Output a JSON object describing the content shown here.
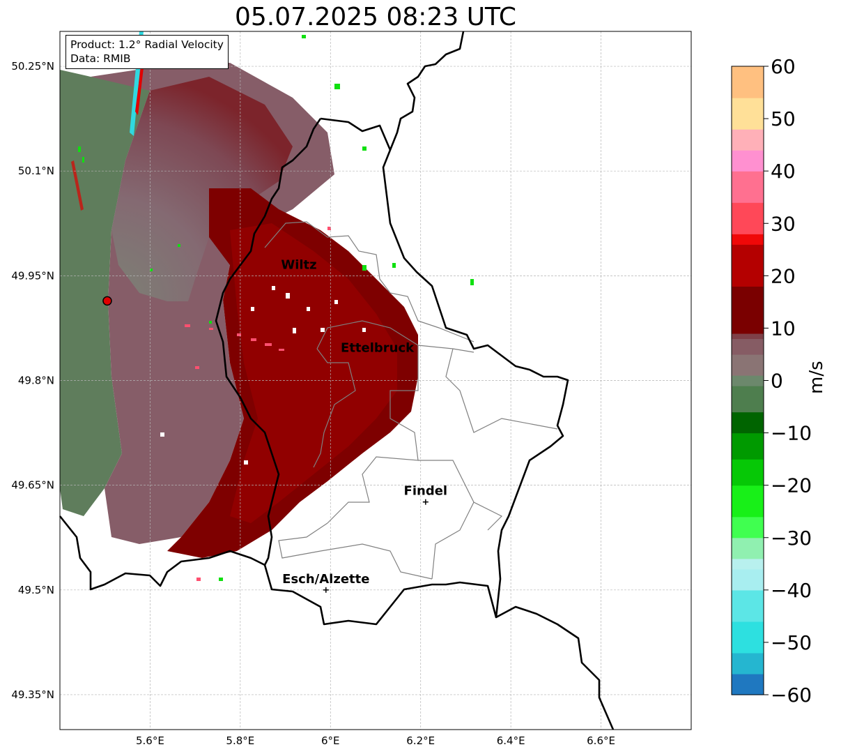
{
  "title": "05.07.2025 08:23 UTC",
  "info": {
    "product": "Product: 1.2° Radial Velocity",
    "data_source": "Data: RMIB"
  },
  "map": {
    "lon_range": [
      5.4,
      6.8
    ],
    "lat_range": [
      49.3,
      50.3
    ],
    "lon_ticks": [
      {
        "value": 5.6,
        "label": "5.6°E"
      },
      {
        "value": 5.8,
        "label": "5.8°E"
      },
      {
        "value": 6.0,
        "label": "6°E"
      },
      {
        "value": 6.2,
        "label": "6.2°E"
      },
      {
        "value": 6.4,
        "label": "6.4°E"
      },
      {
        "value": 6.6,
        "label": "6.6°E"
      }
    ],
    "lat_ticks": [
      {
        "value": 50.25,
        "label": "50.25°N"
      },
      {
        "value": 50.1,
        "label": "50.1°N"
      },
      {
        "value": 49.95,
        "label": "49.95°N"
      },
      {
        "value": 49.8,
        "label": "49.8°N"
      },
      {
        "value": 49.65,
        "label": "49.65°N"
      },
      {
        "value": 49.5,
        "label": "49.5°N"
      },
      {
        "value": 49.35,
        "label": "49.35°N"
      }
    ],
    "radar_site": {
      "lon": 5.505,
      "lat": 49.914,
      "color": "#e00000"
    },
    "places": [
      {
        "name": "Wiltz",
        "lon": 5.93,
        "lat": 49.966,
        "marker": false
      },
      {
        "name": "Ettelbruck",
        "lon": 6.104,
        "lat": 49.847,
        "marker": false
      },
      {
        "name": "Findel",
        "lon": 6.211,
        "lat": 49.626,
        "marker": true
      },
      {
        "name": "Esch/Alzette",
        "lon": 5.99,
        "lat": 49.5,
        "marker": true
      }
    ],
    "border_color": "#000000",
    "canton_color": "#808080",
    "grid": true
  },
  "colorbar": {
    "label": "m/s",
    "range": [
      -60,
      60
    ],
    "ticks": [
      {
        "value": 60,
        "label": "60"
      },
      {
        "value": 50,
        "label": "50"
      },
      {
        "value": 40,
        "label": "40"
      },
      {
        "value": 30,
        "label": "30"
      },
      {
        "value": 20,
        "label": "20"
      },
      {
        "value": 10,
        "label": "10"
      },
      {
        "value": 0,
        "label": "0"
      },
      {
        "value": -10,
        "label": "−10"
      },
      {
        "value": -20,
        "label": "−20"
      },
      {
        "value": -30,
        "label": "−30"
      },
      {
        "value": -40,
        "label": "−40"
      },
      {
        "value": -50,
        "label": "−50"
      },
      {
        "value": -60,
        "label": "−60"
      }
    ],
    "stops": [
      {
        "value": -60,
        "color": "#1f78c0"
      },
      {
        "value": -56,
        "color": "#25b6d0"
      },
      {
        "value": -52,
        "color": "#2de0e0"
      },
      {
        "value": -46,
        "color": "#5ce6e6"
      },
      {
        "value": -40,
        "color": "#a8eef0"
      },
      {
        "value": -36,
        "color": "#b8f0ee"
      },
      {
        "value": -34,
        "color": "#90f0b0"
      },
      {
        "value": -30,
        "color": "#40ff50"
      },
      {
        "value": -26,
        "color": "#18f018"
      },
      {
        "value": -20,
        "color": "#06c806"
      },
      {
        "value": -15,
        "color": "#009a00"
      },
      {
        "value": -10,
        "color": "#006400"
      },
      {
        "value": -6,
        "color": "#4e7e4e"
      },
      {
        "value": -1,
        "color": "#6c886c"
      },
      {
        "value": 1,
        "color": "#8a7474"
      },
      {
        "value": 5,
        "color": "#865c64"
      },
      {
        "value": 8,
        "color": "#7e4048"
      },
      {
        "value": 9,
        "color": "#7a0000"
      },
      {
        "value": 18,
        "color": "#b40000"
      },
      {
        "value": 26,
        "color": "#f00808"
      },
      {
        "value": 28,
        "color": "#ff4858"
      },
      {
        "value": 34,
        "color": "#ff7090"
      },
      {
        "value": 40,
        "color": "#ff90d0"
      },
      {
        "value": 44,
        "color": "#ffb0b8"
      },
      {
        "value": 48,
        "color": "#ffe098"
      },
      {
        "value": 54,
        "color": "#ffc080"
      },
      {
        "value": 60,
        "color": "#ff9a50"
      }
    ]
  }
}
